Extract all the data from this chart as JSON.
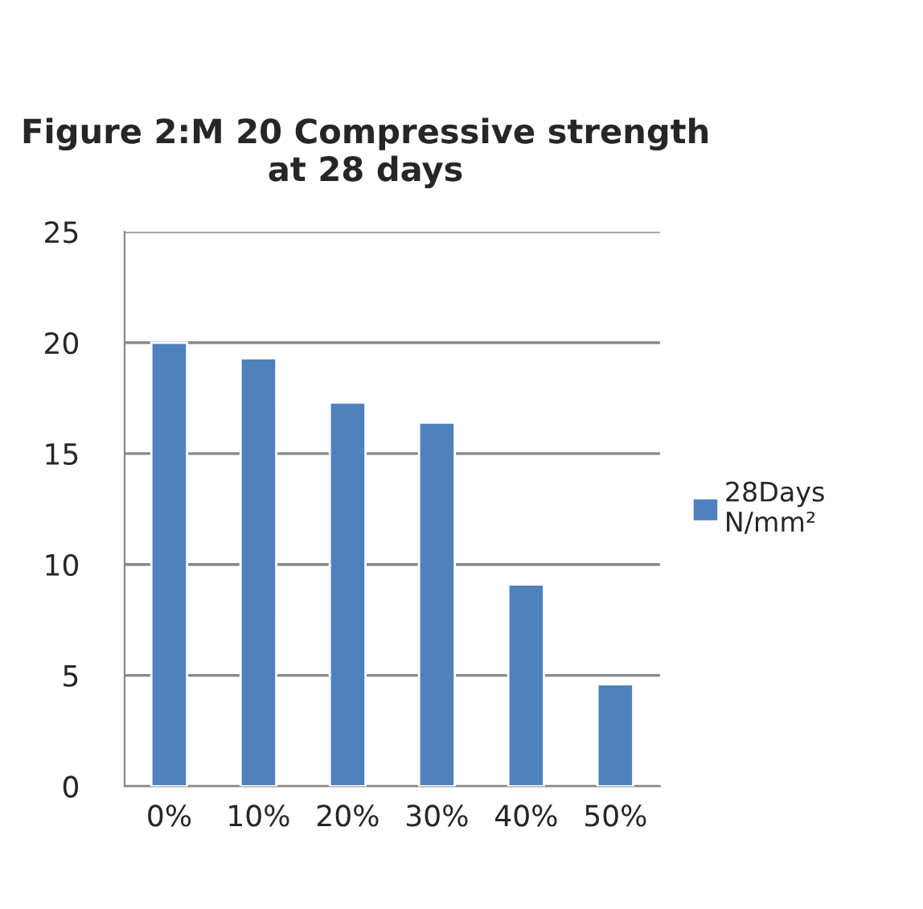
{
  "chart_data": {
    "type": "bar",
    "title": "Figure 2:M 20 Compressive strength at 28 days",
    "categories": [
      "0%",
      "10%",
      "20%",
      "30%",
      "40%",
      "50%"
    ],
    "series": [
      {
        "name": "28Days N/mm²",
        "color": "#4f81bd",
        "values": [
          20,
          19.3,
          17.3,
          16.4,
          9.1,
          4.6
        ]
      }
    ],
    "ylim": [
      0,
      25
    ],
    "yticks": [
      0,
      5,
      10,
      15,
      20,
      25
    ],
    "grid": "y",
    "legend": "right"
  }
}
